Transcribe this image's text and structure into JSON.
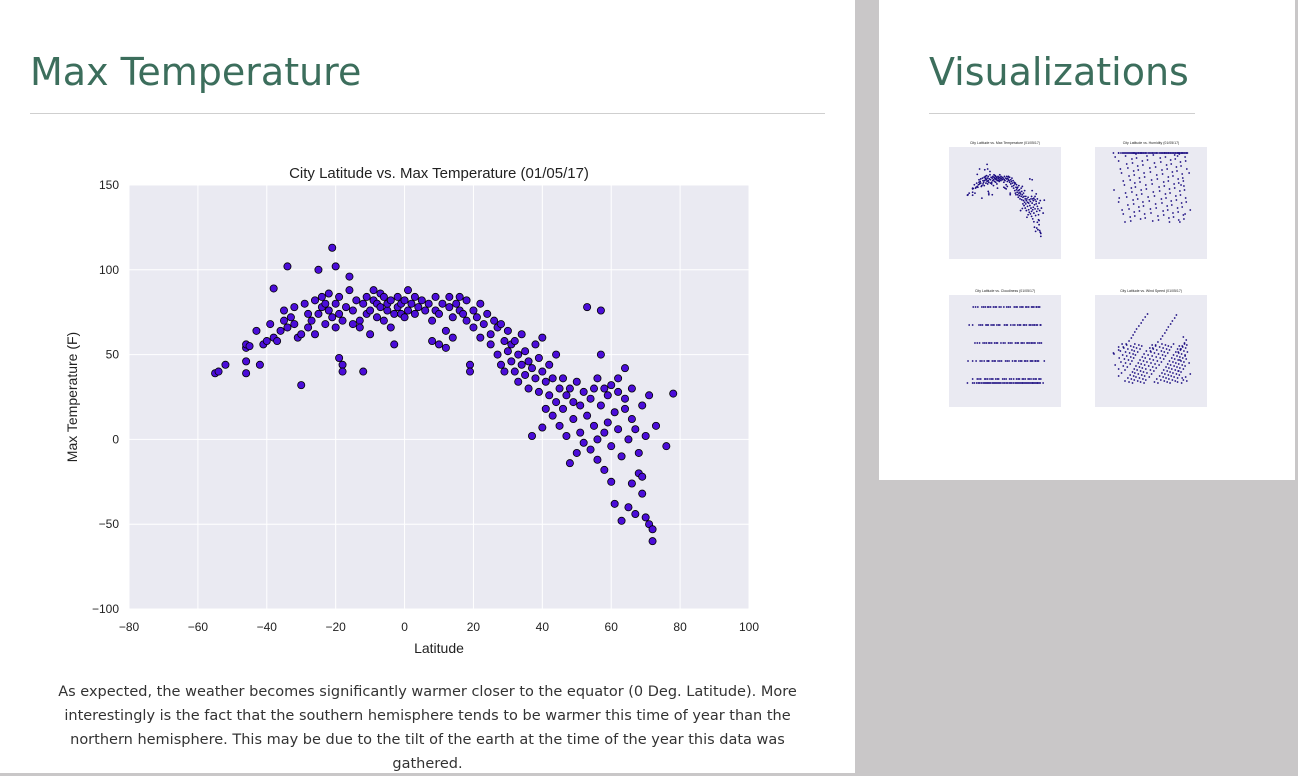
{
  "main": {
    "title": "Max Temperature",
    "description": "As expected, the weather becomes significantly warmer closer to the equator (0 Deg. Latitude). More interestingly is the fact that the southern hemisphere tends to be warmer this time of year than the northern hemisphere. This may be due to the tilt of the earth at the time of the year this data was gathered."
  },
  "sidebar": {
    "title": "Visualizations",
    "thumbnails": [
      {
        "label": "City Latitude vs. Max Temperature (01/05/17)"
      },
      {
        "label": "City Latitude vs. Humidity (01/05/17)"
      },
      {
        "label": "City Latitude vs. Cloudiness (01/05/17)"
      },
      {
        "label": "City Latitude vs. Wind Speed (01/05/17)"
      }
    ]
  },
  "colors": {
    "heading": "#3c6e5c",
    "plot_background": "#eaeaf2",
    "marker_fill": "#4b0dd9",
    "marker_edge": "#000000",
    "sidebar_background": "#c9c7c8"
  },
  "chart_data": {
    "type": "scatter",
    "title": "City Latitude vs. Max Temperature (01/05/17)",
    "xlabel": "Latitude",
    "ylabel": "Max Temperature (F)",
    "xlim": [
      -80,
      100
    ],
    "ylim": [
      -100,
      150
    ],
    "xticks": [
      -80,
      -60,
      -40,
      -20,
      0,
      20,
      40,
      60,
      80,
      100
    ],
    "yticks": [
      -100,
      -50,
      0,
      50,
      100,
      150
    ],
    "xtick_labels": [
      "−80",
      "−60",
      "−40",
      "−20",
      "0",
      "20",
      "40",
      "60",
      "80",
      "100"
    ],
    "ytick_labels": [
      "−100",
      "−50",
      "0",
      "50",
      "100",
      "150"
    ],
    "grid": true,
    "legend": "none",
    "points": [
      [
        -55,
        39
      ],
      [
        -54,
        40
      ],
      [
        -52,
        44
      ],
      [
        -46,
        54
      ],
      [
        -46,
        56
      ],
      [
        -45,
        55
      ],
      [
        -46,
        46
      ],
      [
        -46,
        39
      ],
      [
        -43,
        64
      ],
      [
        -42,
        44
      ],
      [
        -41,
        56
      ],
      [
        -40,
        58
      ],
      [
        -39,
        68
      ],
      [
        -38,
        89
      ],
      [
        -38,
        60
      ],
      [
        -37,
        58
      ],
      [
        -36,
        64
      ],
      [
        -35,
        70
      ],
      [
        -35,
        76
      ],
      [
        -34,
        102
      ],
      [
        -34,
        66
      ],
      [
        -33,
        72
      ],
      [
        -32,
        68
      ],
      [
        -32,
        78
      ],
      [
        -31,
        60
      ],
      [
        -30,
        62
      ],
      [
        -30,
        32
      ],
      [
        -29,
        80
      ],
      [
        -28,
        74
      ],
      [
        -28,
        66
      ],
      [
        -27,
        70
      ],
      [
        -26,
        82
      ],
      [
        -26,
        62
      ],
      [
        -25,
        74
      ],
      [
        -25,
        100
      ],
      [
        -24,
        78
      ],
      [
        -24,
        84
      ],
      [
        -23,
        68
      ],
      [
        -23,
        80
      ],
      [
        -22,
        76
      ],
      [
        -22,
        86
      ],
      [
        -21,
        113
      ],
      [
        -21,
        72
      ],
      [
        -20,
        102
      ],
      [
        -20,
        80
      ],
      [
        -20,
        66
      ],
      [
        -19,
        48
      ],
      [
        -19,
        74
      ],
      [
        -19,
        84
      ],
      [
        -18,
        44
      ],
      [
        -18,
        40
      ],
      [
        -18,
        70
      ],
      [
        -17,
        78
      ],
      [
        -16,
        88
      ],
      [
        -16,
        96
      ],
      [
        -15,
        68
      ],
      [
        -15,
        76
      ],
      [
        -14,
        82
      ],
      [
        -13,
        70
      ],
      [
        -13,
        66
      ],
      [
        -12,
        80
      ],
      [
        -12,
        40
      ],
      [
        -11,
        74
      ],
      [
        -11,
        84
      ],
      [
        -10,
        76
      ],
      [
        -10,
        62
      ],
      [
        -9,
        82
      ],
      [
        -9,
        88
      ],
      [
        -8,
        72
      ],
      [
        -8,
        80
      ],
      [
        -7,
        78
      ],
      [
        -7,
        86
      ],
      [
        -6,
        70
      ],
      [
        -6,
        84
      ],
      [
        -5,
        76
      ],
      [
        -5,
        80
      ],
      [
        -4,
        66
      ],
      [
        -4,
        82
      ],
      [
        -3,
        56
      ],
      [
        -3,
        74
      ],
      [
        -2,
        84
      ],
      [
        -2,
        78
      ],
      [
        -1,
        80
      ],
      [
        -1,
        74
      ],
      [
        0,
        72
      ],
      [
        0,
        82
      ],
      [
        1,
        88
      ],
      [
        1,
        76
      ],
      [
        2,
        80
      ],
      [
        3,
        74
      ],
      [
        3,
        84
      ],
      [
        4,
        78
      ],
      [
        5,
        82
      ],
      [
        6,
        76
      ],
      [
        7,
        80
      ],
      [
        8,
        70
      ],
      [
        8,
        58
      ],
      [
        9,
        84
      ],
      [
        9,
        76
      ],
      [
        10,
        74
      ],
      [
        10,
        56
      ],
      [
        11,
        80
      ],
      [
        12,
        64
      ],
      [
        12,
        54
      ],
      [
        13,
        78
      ],
      [
        13,
        84
      ],
      [
        14,
        72
      ],
      [
        14,
        60
      ],
      [
        15,
        80
      ],
      [
        16,
        76
      ],
      [
        16,
        84
      ],
      [
        17,
        74
      ],
      [
        18,
        70
      ],
      [
        18,
        82
      ],
      [
        19,
        44
      ],
      [
        19,
        40
      ],
      [
        20,
        76
      ],
      [
        20,
        66
      ],
      [
        21,
        72
      ],
      [
        22,
        60
      ],
      [
        22,
        80
      ],
      [
        23,
        68
      ],
      [
        24,
        74
      ],
      [
        25,
        62
      ],
      [
        25,
        56
      ],
      [
        26,
        70
      ],
      [
        27,
        50
      ],
      [
        27,
        66
      ],
      [
        28,
        44
      ],
      [
        28,
        68
      ],
      [
        29,
        58
      ],
      [
        29,
        40
      ],
      [
        30,
        52
      ],
      [
        30,
        64
      ],
      [
        31,
        46
      ],
      [
        31,
        56
      ],
      [
        32,
        40
      ],
      [
        32,
        58
      ],
      [
        33,
        50
      ],
      [
        33,
        34
      ],
      [
        34,
        44
      ],
      [
        34,
        62
      ],
      [
        35,
        38
      ],
      [
        35,
        52
      ],
      [
        36,
        30
      ],
      [
        36,
        46
      ],
      [
        37,
        42
      ],
      [
        37,
        2
      ],
      [
        38,
        56
      ],
      [
        38,
        36
      ],
      [
        39,
        48
      ],
      [
        39,
        28
      ],
      [
        40,
        40
      ],
      [
        40,
        60
      ],
      [
        40,
        7
      ],
      [
        41,
        34
      ],
      [
        41,
        18
      ],
      [
        42,
        44
      ],
      [
        42,
        26
      ],
      [
        43,
        36
      ],
      [
        43,
        14
      ],
      [
        44,
        50
      ],
      [
        44,
        22
      ],
      [
        45,
        30
      ],
      [
        45,
        8
      ],
      [
        46,
        36
      ],
      [
        46,
        18
      ],
      [
        47,
        26
      ],
      [
        47,
        2
      ],
      [
        48,
        30
      ],
      [
        48,
        -14
      ],
      [
        49,
        22
      ],
      [
        49,
        12
      ],
      [
        50,
        34
      ],
      [
        50,
        -8
      ],
      [
        51,
        20
      ],
      [
        51,
        4
      ],
      [
        52,
        28
      ],
      [
        52,
        -2
      ],
      [
        53,
        78
      ],
      [
        53,
        14
      ],
      [
        54,
        24
      ],
      [
        54,
        -6
      ],
      [
        55,
        8
      ],
      [
        55,
        30
      ],
      [
        56,
        0
      ],
      [
        56,
        -12
      ],
      [
        57,
        20
      ],
      [
        57,
        76
      ],
      [
        57,
        50
      ],
      [
        58,
        4
      ],
      [
        58,
        -18
      ],
      [
        59,
        10
      ],
      [
        59,
        26
      ],
      [
        60,
        -25
      ],
      [
        60,
        -4
      ],
      [
        61,
        16
      ],
      [
        61,
        -38
      ],
      [
        62,
        6
      ],
      [
        62,
        28
      ],
      [
        63,
        -10
      ],
      [
        63,
        -48
      ],
      [
        64,
        18
      ],
      [
        64,
        42
      ],
      [
        65,
        0
      ],
      [
        65,
        -40
      ],
      [
        66,
        12
      ],
      [
        66,
        -26
      ],
      [
        67,
        6
      ],
      [
        67,
        -44
      ],
      [
        68,
        -20
      ],
      [
        68,
        -8
      ],
      [
        69,
        20
      ],
      [
        69,
        -32
      ],
      [
        70,
        -46
      ],
      [
        70,
        2
      ],
      [
        71,
        26
      ],
      [
        71,
        -50
      ],
      [
        72,
        -60
      ],
      [
        73,
        8
      ],
      [
        76,
        -4
      ],
      [
        78,
        27
      ],
      [
        72,
        -53
      ],
      [
        69,
        -22
      ],
      [
        66,
        30
      ],
      [
        64,
        24
      ],
      [
        62,
        36
      ],
      [
        60,
        32
      ],
      [
        58,
        30
      ],
      [
        56,
        36
      ]
    ]
  }
}
